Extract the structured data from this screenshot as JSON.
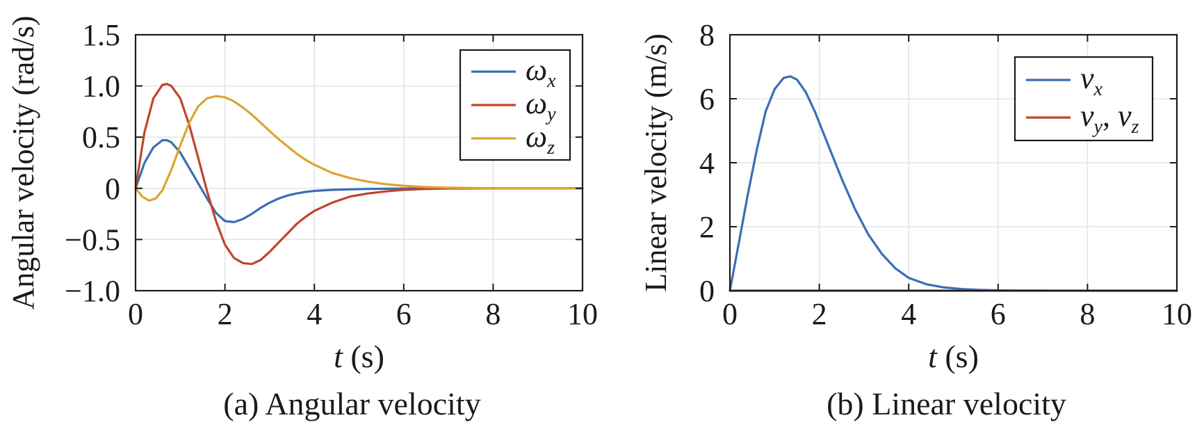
{
  "colors": {
    "blue": "#3a6db5",
    "red": "#c0452b",
    "gold": "#dca431",
    "axis": "#1a1a1a",
    "grid": "#e3e3e3"
  },
  "chart_data": [
    {
      "type": "line",
      "caption": "(a) Angular velocity",
      "xlabel": {
        "var": "t",
        "unit": "(s)"
      },
      "ylabel": "Angular velocity (rad/s)",
      "xlim": [
        0,
        10
      ],
      "ylim": [
        -1.0,
        1.5
      ],
      "xticks": [
        0,
        2,
        4,
        6,
        8,
        10
      ],
      "xticklabels": [
        "0",
        "2",
        "4",
        "6",
        "8",
        "10"
      ],
      "yticks": [
        -1.0,
        -0.5,
        0,
        0.5,
        1.0,
        1.5
      ],
      "yticklabels": [
        "−1.0",
        "−0.5",
        "0",
        "0.5",
        "1.0",
        "1.5"
      ],
      "grid": true,
      "legend_position": "top-right",
      "series": [
        {
          "name": "ωx",
          "base": "ω",
          "sub": "x",
          "color": "blue",
          "x": [
            0,
            0.2,
            0.4,
            0.6,
            0.7,
            0.8,
            1.0,
            1.2,
            1.4,
            1.6,
            1.8,
            2.0,
            2.2,
            2.4,
            2.6,
            2.8,
            3.0,
            3.2,
            3.4,
            3.6,
            3.8,
            4.0,
            4.4,
            4.8,
            5.2,
            5.6,
            6.0,
            6.5,
            7.0,
            8.0,
            9.0,
            10.0
          ],
          "y": [
            0,
            0.25,
            0.4,
            0.47,
            0.47,
            0.45,
            0.35,
            0.2,
            0.05,
            -0.1,
            -0.24,
            -0.32,
            -0.33,
            -0.3,
            -0.25,
            -0.19,
            -0.14,
            -0.1,
            -0.07,
            -0.05,
            -0.035,
            -0.025,
            -0.015,
            -0.01,
            -0.006,
            -0.004,
            -0.002,
            -0.001,
            0,
            0,
            0,
            0
          ]
        },
        {
          "name": "ωy",
          "base": "ω",
          "sub": "y",
          "color": "red",
          "x": [
            0,
            0.2,
            0.4,
            0.6,
            0.7,
            0.8,
            1.0,
            1.2,
            1.4,
            1.6,
            1.8,
            2.0,
            2.2,
            2.4,
            2.6,
            2.8,
            3.0,
            3.2,
            3.4,
            3.6,
            3.8,
            4.0,
            4.4,
            4.8,
            5.2,
            5.6,
            6.0,
            6.5,
            7.0,
            8.0,
            9.0,
            10.0
          ],
          "y": [
            0,
            0.55,
            0.88,
            1.01,
            1.02,
            1.0,
            0.88,
            0.62,
            0.3,
            -0.03,
            -0.32,
            -0.55,
            -0.68,
            -0.73,
            -0.74,
            -0.7,
            -0.62,
            -0.53,
            -0.44,
            -0.35,
            -0.28,
            -0.22,
            -0.14,
            -0.08,
            -0.05,
            -0.03,
            -0.015,
            -0.006,
            -0.002,
            0,
            0,
            0
          ]
        },
        {
          "name": "ωz",
          "base": "ω",
          "sub": "z",
          "color": "gold",
          "x": [
            0,
            0.15,
            0.3,
            0.45,
            0.6,
            0.8,
            1.0,
            1.2,
            1.4,
            1.6,
            1.8,
            2.0,
            2.2,
            2.4,
            2.6,
            2.8,
            3.0,
            3.2,
            3.4,
            3.6,
            3.8,
            4.0,
            4.4,
            4.8,
            5.2,
            5.6,
            6.0,
            6.5,
            7.0,
            8.0,
            9.0,
            10.0
          ],
          "y": [
            0,
            -0.08,
            -0.12,
            -0.1,
            -0.02,
            0.18,
            0.42,
            0.64,
            0.8,
            0.88,
            0.9,
            0.89,
            0.85,
            0.79,
            0.72,
            0.64,
            0.56,
            0.48,
            0.41,
            0.34,
            0.28,
            0.23,
            0.15,
            0.1,
            0.065,
            0.04,
            0.025,
            0.012,
            0.006,
            0.001,
            0,
            0
          ]
        }
      ]
    },
    {
      "type": "line",
      "caption": "(b) Linear velocity",
      "xlabel": {
        "var": "t",
        "unit": "(s)"
      },
      "ylabel": "Linear velocity (m/s)",
      "xlim": [
        0,
        10
      ],
      "ylim": [
        0,
        8
      ],
      "xticks": [
        0,
        2,
        4,
        6,
        8,
        10
      ],
      "xticklabels": [
        "0",
        "2",
        "4",
        "6",
        "8",
        "10"
      ],
      "yticks": [
        0,
        2,
        4,
        6,
        8
      ],
      "yticklabels": [
        "0",
        "2",
        "4",
        "6",
        "8"
      ],
      "grid": true,
      "legend_position": "top-right",
      "series": [
        {
          "name": "vx",
          "base": "v",
          "sub": "x",
          "color": "blue",
          "x": [
            0,
            0.2,
            0.4,
            0.6,
            0.8,
            1.0,
            1.2,
            1.35,
            1.5,
            1.7,
            1.9,
            2.1,
            2.3,
            2.5,
            2.8,
            3.1,
            3.4,
            3.7,
            4.0,
            4.4,
            4.8,
            5.2,
            5.6,
            6.0,
            6.5,
            7.0,
            8.0,
            9.0,
            10.0
          ],
          "y": [
            0,
            1.5,
            3.0,
            4.4,
            5.6,
            6.3,
            6.65,
            6.7,
            6.6,
            6.2,
            5.6,
            4.9,
            4.2,
            3.5,
            2.55,
            1.75,
            1.15,
            0.7,
            0.4,
            0.2,
            0.1,
            0.05,
            0.025,
            0.01,
            0.005,
            0.002,
            0,
            0,
            0
          ]
        },
        {
          "name": "vy, vz",
          "base": "v",
          "sub": "y",
          "base2": "v",
          "sub2": "z",
          "color": "red",
          "x": [
            0,
            10
          ],
          "y": [
            0,
            0
          ]
        }
      ]
    }
  ]
}
